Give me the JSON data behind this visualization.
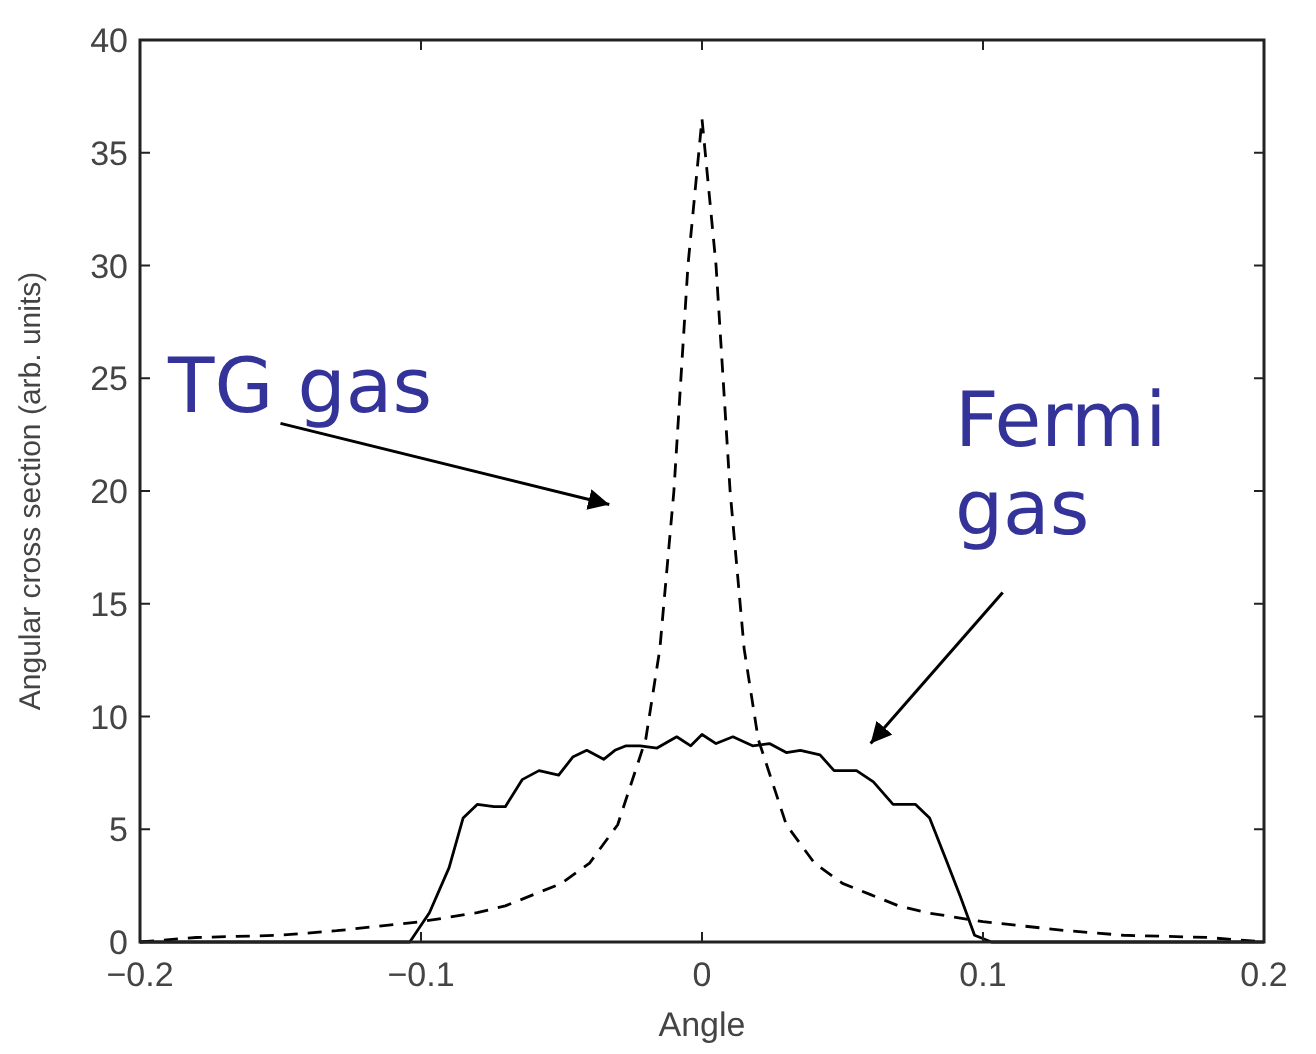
{
  "chart_data": {
    "type": "line",
    "xlabel": "Angle",
    "ylabel": "Angular cross section (arb. units)",
    "xlim": [
      -0.2,
      0.2
    ],
    "xticks": [
      -0.2,
      -0.1,
      0,
      0.1,
      0.2
    ],
    "ylim": [
      0,
      40
    ],
    "yticks": [
      0,
      5,
      10,
      15,
      20,
      25,
      30,
      35,
      40
    ],
    "grid": false,
    "series": [
      {
        "color": "#000000",
        "line_style": "dashed",
        "x": [
          -0.2,
          -0.18,
          -0.15,
          -0.13,
          -0.1,
          -0.08,
          -0.07,
          -0.06,
          -0.05,
          -0.04,
          -0.03,
          -0.02,
          -0.015,
          -0.01,
          -0.005,
          0,
          0.005,
          0.01,
          0.015,
          0.02,
          0.03,
          0.04,
          0.05,
          0.06,
          0.07,
          0.08,
          0.1,
          0.13,
          0.15,
          0.18,
          0.2
        ],
        "values": [
          0,
          0.2,
          0.3,
          0.5,
          0.9,
          1.3,
          1.6,
          2.1,
          2.6,
          3.5,
          5.2,
          9,
          13,
          20,
          30,
          36.5,
          30,
          20,
          13,
          9,
          5.2,
          3.5,
          2.6,
          2.1,
          1.6,
          1.3,
          0.9,
          0.5,
          0.3,
          0.2,
          0
        ]
      },
      {
        "color": "#000000",
        "line_style": "solid",
        "x": [
          -0.2,
          -0.104,
          -0.097,
          -0.09,
          -0.085,
          -0.08,
          -0.074,
          -0.07,
          -0.064,
          -0.058,
          -0.051,
          -0.046,
          -0.041,
          -0.035,
          -0.031,
          -0.027,
          -0.022,
          -0.016,
          -0.009,
          -0.004,
          0,
          0.005,
          0.011,
          0.018,
          0.024,
          0.03,
          0.035,
          0.042,
          0.047,
          0.055,
          0.061,
          0.068,
          0.076,
          0.081,
          0.087,
          0.092,
          0.097,
          0.103,
          0.107,
          0.2
        ],
        "values": [
          0,
          0,
          1.3,
          3.3,
          5.5,
          6.1,
          6.0,
          6.0,
          7.2,
          7.6,
          7.4,
          8.2,
          8.5,
          8.1,
          8.5,
          8.7,
          8.7,
          8.6,
          9.1,
          8.7,
          9.2,
          8.8,
          9.1,
          8.7,
          8.8,
          8.4,
          8.5,
          8.3,
          7.6,
          7.6,
          7.1,
          6.1,
          6.1,
          5.5,
          3.6,
          2.0,
          0.3,
          0,
          0,
          0
        ]
      }
    ],
    "annotations": [
      "TG gas",
      "Fermi\ngas"
    ]
  }
}
